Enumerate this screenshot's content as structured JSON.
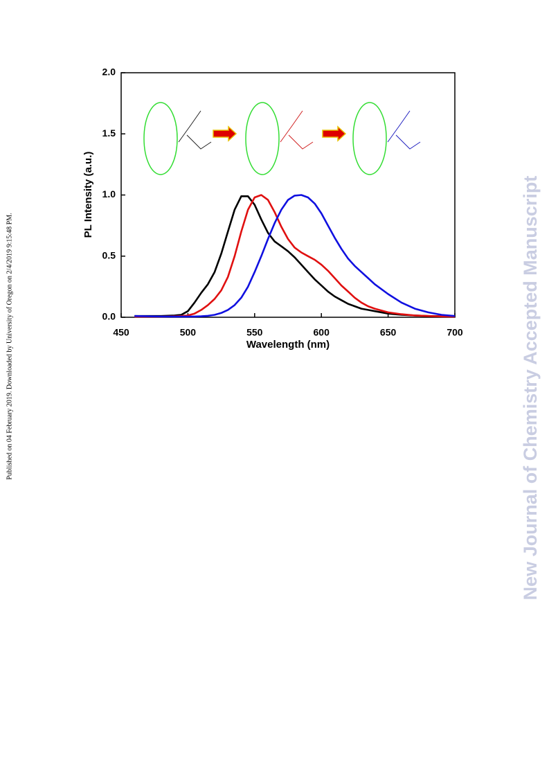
{
  "side_note": "Published on 04 February 2019. Downloaded by University of Oregon on 2/4/2019 9:15:48 PM.",
  "watermark": "New Journal of Chemistry Accepted Manuscript",
  "chart_data": {
    "type": "line",
    "xlabel": "Wavelength (nm)",
    "ylabel": "PL Intensity (a.u.)",
    "x": [
      460,
      470,
      480,
      490,
      495,
      500,
      505,
      510,
      515,
      520,
      525,
      530,
      535,
      540,
      545,
      550,
      555,
      560,
      565,
      570,
      575,
      580,
      585,
      590,
      595,
      600,
      605,
      610,
      615,
      620,
      625,
      630,
      635,
      640,
      650,
      660,
      670,
      680,
      690,
      700
    ],
    "series": [
      {
        "color": "#000000",
        "values": [
          0.01,
          0.01,
          0.01,
          0.015,
          0.02,
          0.05,
          0.12,
          0.2,
          0.27,
          0.37,
          0.52,
          0.7,
          0.88,
          0.99,
          0.99,
          0.92,
          0.8,
          0.69,
          0.62,
          0.58,
          0.54,
          0.49,
          0.43,
          0.37,
          0.31,
          0.26,
          0.21,
          0.17,
          0.14,
          0.11,
          0.09,
          0.07,
          0.06,
          0.05,
          0.03,
          0.02,
          0.015,
          0.01,
          0.008,
          0.005
        ]
      },
      {
        "color": "#e01010",
        "values": [
          0.005,
          0.005,
          0.005,
          0.008,
          0.01,
          0.015,
          0.03,
          0.06,
          0.1,
          0.15,
          0.22,
          0.33,
          0.5,
          0.7,
          0.88,
          0.98,
          1.0,
          0.96,
          0.86,
          0.74,
          0.64,
          0.57,
          0.53,
          0.5,
          0.47,
          0.43,
          0.38,
          0.32,
          0.26,
          0.21,
          0.16,
          0.12,
          0.09,
          0.07,
          0.04,
          0.025,
          0.015,
          0.01,
          0.007,
          0.005
        ]
      },
      {
        "color": "#1010e0",
        "values": [
          0.01,
          0.008,
          0.006,
          0.005,
          0.005,
          0.005,
          0.006,
          0.008,
          0.012,
          0.02,
          0.035,
          0.06,
          0.1,
          0.16,
          0.25,
          0.37,
          0.5,
          0.64,
          0.77,
          0.88,
          0.96,
          0.995,
          1.0,
          0.98,
          0.93,
          0.85,
          0.75,
          0.65,
          0.56,
          0.48,
          0.42,
          0.37,
          0.32,
          0.27,
          0.19,
          0.12,
          0.07,
          0.04,
          0.02,
          0.01
        ]
      }
    ],
    "xlim": [
      450,
      700
    ],
    "xticks": [
      450,
      500,
      550,
      600,
      650,
      700
    ],
    "ylim": [
      0,
      2
    ],
    "yticks": [
      {
        "value": 0,
        "label": "0.0"
      },
      0.5,
      {
        "value": 1,
        "label": "1.0"
      },
      1.5,
      {
        "value": 2,
        "label": "2.0"
      }
    ]
  }
}
